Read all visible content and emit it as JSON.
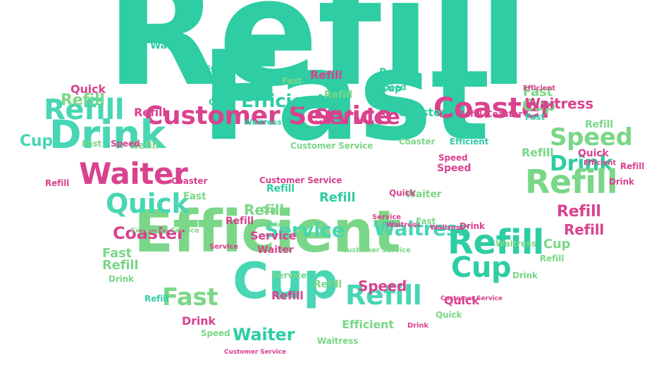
{
  "colors": {
    "teal": "#2ecda3",
    "light_green": "#7ad787",
    "aqua": "#48d6b4",
    "pink": "#d9428e",
    "light_pink": "#e1649f",
    "background": "#ffffff"
  },
  "words": [
    {
      "text": "Refill",
      "size": "huge",
      "color": "teal"
    },
    {
      "text": "Fast",
      "size": "huge",
      "color": "teal"
    },
    {
      "text": "Efficient",
      "size": "large",
      "color": "light_green"
    },
    {
      "text": "Cup",
      "size": "large",
      "color": "aqua"
    },
    {
      "text": "Customer Service",
      "size": "medium",
      "color": "pink"
    },
    {
      "text": "Coaster",
      "size": "medium",
      "color": "pink"
    },
    {
      "text": "Drink",
      "size": "medium",
      "color": "aqua"
    },
    {
      "text": "Refill",
      "size": "medium",
      "color": "aqua"
    },
    {
      "text": "Waiter",
      "size": "medium",
      "color": "pink"
    },
    {
      "text": "Quick",
      "size": "medium",
      "color": "aqua"
    },
    {
      "text": "Service",
      "size": "medium",
      "color": "aqua"
    },
    {
      "text": "Waitress",
      "size": "medium",
      "color": "aqua"
    },
    {
      "text": "Refill",
      "size": "medium",
      "color": "teal"
    },
    {
      "text": "Cup",
      "size": "medium",
      "color": "teal"
    },
    {
      "text": "Speed",
      "size": "medium",
      "color": "light_green"
    },
    {
      "text": "Drink",
      "size": "medium",
      "color": "teal"
    },
    {
      "text": "Refill",
      "size": "medium",
      "color": "light_green"
    },
    {
      "text": "Fast",
      "size": "medium",
      "color": "light_green"
    },
    {
      "text": "Refill",
      "size": "medium",
      "color": "aqua"
    },
    {
      "text": "Service",
      "size": "medium",
      "color": "pink"
    },
    {
      "text": "Coaster",
      "size": "small",
      "color": "pink"
    },
    {
      "text": "Efficient",
      "size": "small",
      "color": "teal"
    },
    {
      "text": "Refill",
      "size": "small",
      "color": "light_green"
    },
    {
      "text": "Refill",
      "size": "small",
      "color": "pink"
    },
    {
      "text": "Waiter",
      "size": "small",
      "color": "teal"
    },
    {
      "text": "Cup",
      "size": "small",
      "color": "light_green"
    },
    {
      "text": "Cup",
      "size": "small",
      "color": "aqua"
    },
    {
      "text": "Cup",
      "size": "small",
      "color": "light_green"
    },
    {
      "text": "Quick",
      "size": "small",
      "color": "pink"
    },
    {
      "text": "Refill",
      "size": "small",
      "color": "light_green"
    },
    {
      "text": "Speed",
      "size": "small",
      "color": "pink"
    },
    {
      "text": "Refill",
      "size": "small",
      "color": "pink"
    },
    {
      "text": "Fast",
      "size": "small",
      "color": "light_green"
    },
    {
      "text": "Waitress",
      "size": "small",
      "color": "pink"
    },
    {
      "text": "Service",
      "size": "small",
      "color": "pink"
    },
    {
      "text": "Refill",
      "size": "small",
      "color": "pink"
    },
    {
      "text": "Refill",
      "size": "small",
      "color": "pink"
    },
    {
      "text": "Cup",
      "size": "small",
      "color": "teal"
    },
    {
      "text": "Drink",
      "size": "small",
      "color": "pink"
    },
    {
      "text": "Refill",
      "size": "small",
      "color": "teal"
    },
    {
      "text": "Fast",
      "size": "small",
      "color": "light_green"
    },
    {
      "text": "Refill",
      "size": "small",
      "color": "light_green"
    },
    {
      "text": "Refill",
      "size": "small",
      "color": "light_green"
    },
    {
      "text": "Fast",
      "size": "small",
      "color": "light_green"
    },
    {
      "text": "Refill",
      "size": "small",
      "color": "teal"
    },
    {
      "text": "Waiter",
      "size": "small",
      "color": "light_green"
    },
    {
      "text": "Efficient",
      "size": "small",
      "color": "light_green"
    },
    {
      "text": "Refill",
      "size": "small",
      "color": "pink"
    },
    {
      "text": "Refill",
      "size": "small",
      "color": "pink"
    },
    {
      "text": "Speed",
      "size": "small",
      "color": "pink"
    },
    {
      "text": "Quick",
      "size": "small",
      "color": "pink"
    },
    {
      "text": "Coaster",
      "size": "small",
      "color": "teal"
    },
    {
      "text": "Waiter",
      "size": "tiny",
      "color": "teal"
    },
    {
      "text": "Waiter",
      "size": "tiny",
      "color": "pink"
    },
    {
      "text": "Refill",
      "size": "tiny",
      "color": "teal"
    },
    {
      "text": "Refill",
      "size": "tiny",
      "color": "light_green"
    },
    {
      "text": "Refill",
      "size": "tiny",
      "color": "light_green"
    },
    {
      "text": "Refill",
      "size": "tiny",
      "color": "pink"
    },
    {
      "text": "Refill",
      "size": "tiny",
      "color": "pink"
    },
    {
      "text": "Refill",
      "size": "tiny",
      "color": "light_green"
    },
    {
      "text": "Refill",
      "size": "tiny",
      "color": "teal"
    },
    {
      "text": "Refill",
      "size": "tiny",
      "color": "light_green"
    },
    {
      "text": "Refill",
      "size": "tiny",
      "color": "pink"
    },
    {
      "text": "Refill",
      "size": "tiny",
      "color": "light_green"
    },
    {
      "text": "Quick",
      "size": "tiny",
      "color": "pink"
    },
    {
      "text": "Quick",
      "size": "tiny",
      "color": "teal"
    },
    {
      "text": "Quick",
      "size": "tiny",
      "color": "light_green"
    },
    {
      "text": "Quick",
      "size": "tiny",
      "color": "pink"
    },
    {
      "text": "Cup",
      "size": "tiny",
      "color": "teal"
    },
    {
      "text": "Cup",
      "size": "tiny",
      "color": "light_green"
    },
    {
      "text": "Waitress",
      "size": "tiny",
      "color": "teal"
    },
    {
      "text": "Waitress",
      "size": "tiny",
      "color": "pink"
    },
    {
      "text": "Waitress",
      "size": "tiny",
      "color": "light_green"
    },
    {
      "text": "Waitress",
      "size": "tiny",
      "color": "light_green"
    },
    {
      "text": "Waitress",
      "size": "tiny",
      "color": "pink"
    },
    {
      "text": "Customer Service",
      "size": "tiny",
      "color": "light_green"
    },
    {
      "text": "Customer Service",
      "size": "tiny",
      "color": "pink"
    },
    {
      "text": "Customer Service",
      "size": "tiny",
      "color": "light_green"
    },
    {
      "text": "Customer Service",
      "size": "tiny",
      "color": "light_green"
    },
    {
      "text": "Customer Service",
      "size": "tiny",
      "color": "pink"
    },
    {
      "text": "Customer Service",
      "size": "tiny",
      "color": "pink"
    },
    {
      "text": "Coaster",
      "size": "tiny",
      "color": "pink"
    },
    {
      "text": "Coaster",
      "size": "tiny",
      "color": "pink"
    },
    {
      "text": "Coaster",
      "size": "tiny",
      "color": "light_green"
    },
    {
      "text": "Fast",
      "size": "tiny",
      "color": "light_green"
    },
    {
      "text": "Fast",
      "size": "tiny",
      "color": "light_green"
    },
    {
      "text": "Fast",
      "size": "tiny",
      "color": "light_green"
    },
    {
      "text": "Fast",
      "size": "tiny",
      "color": "teal"
    },
    {
      "text": "Speed",
      "size": "tiny",
      "color": "teal"
    },
    {
      "text": "Speed",
      "size": "tiny",
      "color": "pink"
    },
    {
      "text": "Speed",
      "size": "tiny",
      "color": "light_green"
    },
    {
      "text": "Speed",
      "size": "tiny",
      "color": "pink"
    },
    {
      "text": "Efficient",
      "size": "tiny",
      "color": "pink"
    },
    {
      "text": "Efficient",
      "size": "tiny",
      "color": "pink"
    },
    {
      "text": "Efficient",
      "size": "tiny",
      "color": "light_green"
    },
    {
      "text": "Efficient",
      "size": "tiny",
      "color": "teal"
    },
    {
      "text": "Drink",
      "size": "tiny",
      "color": "pink"
    },
    {
      "text": "Drink",
      "size": "tiny",
      "color": "light_green"
    },
    {
      "text": "Drink",
      "size": "tiny",
      "color": "pink"
    },
    {
      "text": "Drink",
      "size": "tiny",
      "color": "light_green"
    },
    {
      "text": "Drink",
      "size": "tiny",
      "color": "pink"
    },
    {
      "text": "Service",
      "size": "tiny",
      "color": "pink"
    },
    {
      "text": "Service",
      "size": "tiny",
      "color": "light_green"
    },
    {
      "text": "Service",
      "size": "tiny",
      "color": "pink"
    },
    {
      "text": "Waiter",
      "size": "small",
      "color": "teal"
    }
  ]
}
